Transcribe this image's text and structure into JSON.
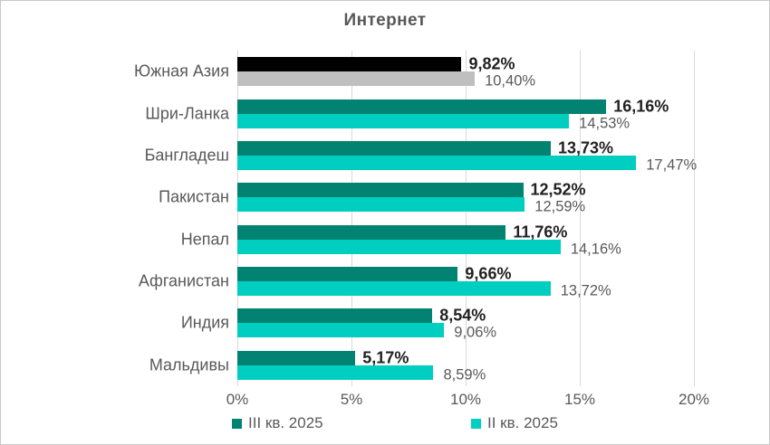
{
  "chart_data": {
    "type": "bar",
    "orientation": "horizontal",
    "title": "Интернет",
    "categories": [
      "Южная Азия",
      "Шри-Ланка",
      "Бангладеш",
      "Пакистан",
      "Непал",
      "Афганистан",
      "Индия",
      "Мальдивы"
    ],
    "series": [
      {
        "name": "III кв. 2025",
        "color": "#028270",
        "values": [
          9.82,
          16.16,
          13.73,
          12.52,
          11.76,
          9.66,
          8.54,
          5.17
        ],
        "labels": [
          "9,82%",
          "16,16%",
          "13,73%",
          "12,52%",
          "11,76%",
          "9,66%",
          "8,54%",
          "5,17%"
        ]
      },
      {
        "name": "II кв. 2025",
        "color": "#00CEC0",
        "values": [
          10.4,
          14.53,
          17.47,
          12.59,
          14.16,
          13.72,
          9.06,
          8.59
        ],
        "labels": [
          "10,40%",
          "14,53%",
          "17,47%",
          "12,59%",
          "14,16%",
          "13,72%",
          "9,06%",
          "8,59%"
        ]
      }
    ],
    "highlight": {
      "category": "Южная Азия",
      "series_colors": [
        "#000000",
        "#BFBFBF"
      ]
    },
    "x_ticks": [
      "0%",
      "5%",
      "10%",
      "15%",
      "20%"
    ],
    "xlim": [
      0,
      20
    ],
    "grid": true,
    "legend_position": "bottom"
  }
}
